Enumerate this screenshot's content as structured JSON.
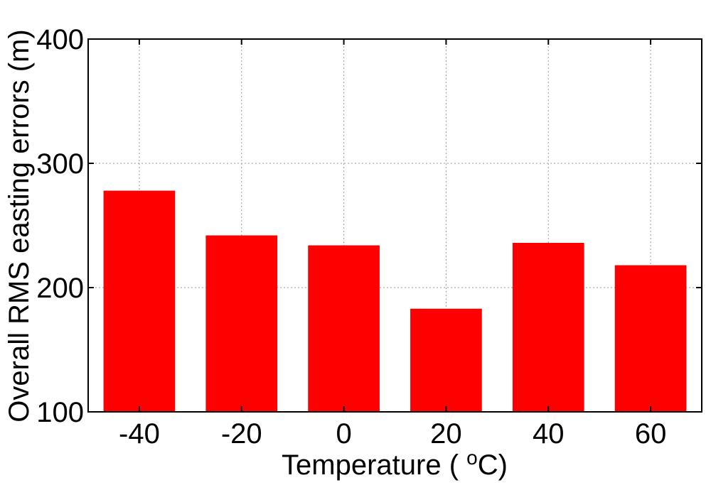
{
  "chart_data": {
    "type": "bar",
    "categories": [
      "-40",
      "-20",
      "0",
      "20",
      "40",
      "60"
    ],
    "values": [
      278,
      242,
      234,
      183,
      236,
      218
    ],
    "title": "",
    "xlabel": "Temperature ( oC)",
    "xlabel_parts": {
      "prefix": "Temperature ( ",
      "superscript": "o",
      "suffix": "C)"
    },
    "ylabel": "Overall RMS easting errors (m)",
    "ylim": [
      100,
      400
    ],
    "yticks": [
      100,
      200,
      300,
      400
    ],
    "grid": true,
    "bar_color": "#ff0000"
  }
}
